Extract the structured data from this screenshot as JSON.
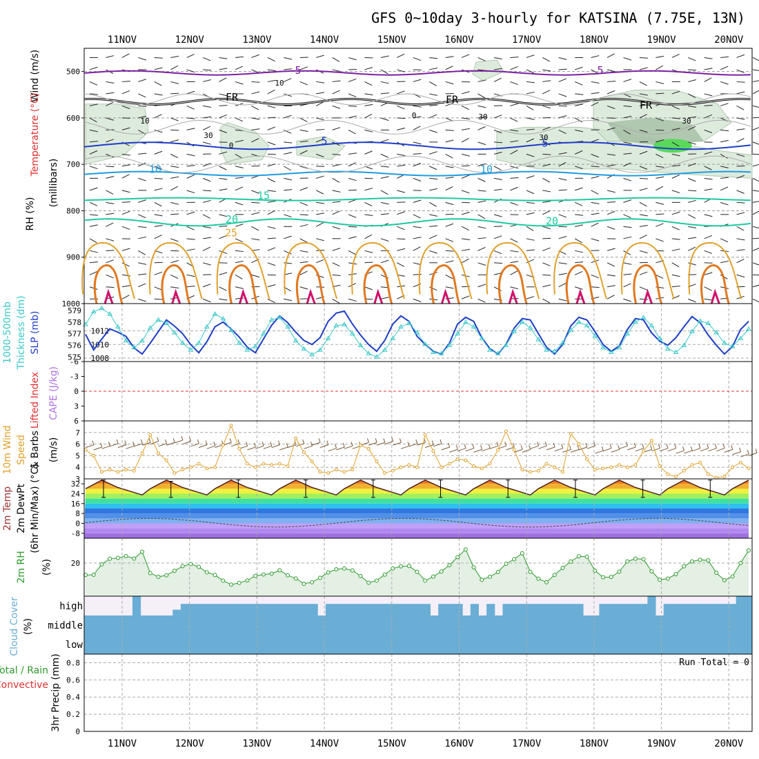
{
  "title": "GFS 0~10day 3-hourly for KATSINA (7.75E, 13N)",
  "dates": [
    "11NOV",
    "12NOV",
    "13NOV",
    "14NOV",
    "15NOV",
    "16NOV",
    "17NOV",
    "18NOV",
    "19NOV",
    "20NOV"
  ],
  "colors": {
    "rh": "#cfe3cf",
    "purple": "#7a1fa0",
    "blue": "#1e3cc8",
    "skyblue": "#1e9be0",
    "teal": "#1ec8a0",
    "orange": "#e0a028",
    "darkorange": "#e07820",
    "magenta": "#d0106a",
    "cyan": "#3cc8c8",
    "cloud": "#6aaed6",
    "green": "#2a9a2a",
    "red": "#e03030",
    "brown": "#7a5a3a"
  },
  "run_total": "Run Total = 0",
  "chart_data": [
    {
      "type": "contour",
      "panel": "upper-air",
      "ylabel_parts": [
        "Wind (m/s)",
        "Temperature (°C)",
        "RH (%)",
        "(millibars)"
      ],
      "yticks": [
        "500",
        "600",
        "700",
        "800",
        "900",
        "1000"
      ],
      "ylim": [
        450,
        1000
      ],
      "contour_labels": [
        {
          "text": "5",
          "color": "purple"
        },
        {
          "text": "5",
          "color": "purple"
        },
        {
          "text": "FR",
          "color": "black"
        },
        {
          "text": "FR",
          "color": "black"
        },
        {
          "text": "FR",
          "color": "black"
        },
        {
          "text": "5",
          "color": "blue"
        },
        {
          "text": "5",
          "color": "blue"
        },
        {
          "text": "10",
          "color": "skyblue"
        },
        {
          "text": "10",
          "color": "skyblue"
        },
        {
          "text": "15",
          "color": "teal"
        },
        {
          "text": "20",
          "color": "teal"
        },
        {
          "text": "20",
          "color": "teal"
        },
        {
          "text": "25",
          "color": "orange"
        },
        {
          "text": "10",
          "color": "gray"
        },
        {
          "text": "10",
          "color": "gray"
        },
        {
          "text": "0",
          "color": "gray"
        },
        {
          "text": "30",
          "color": "gray"
        },
        {
          "text": "0",
          "color": "gray"
        },
        {
          "text": "30",
          "color": "gray"
        },
        {
          "text": "30",
          "color": "gray"
        },
        {
          "text": "30",
          "color": "gray"
        }
      ],
      "levels_hpa": {
        "minus5": 503,
        "freezing": 565,
        "plus5": 660,
        "plus10": 720,
        "plus15": 775,
        "plus20": 825
      }
    },
    {
      "type": "line",
      "panel": "slp-thickness",
      "ylabel_parts": [
        "1000-500mb",
        "Thickness (dm)",
        "SLP (mb)"
      ],
      "left_ticks": [
        "579",
        "578",
        "577",
        "576",
        "575"
      ],
      "right_ticks": [
        "1012",
        "1010",
        "1008"
      ],
      "slp_ylim": [
        1007.5,
        1016
      ],
      "thickness_ylim": [
        574.6,
        579.6
      ],
      "series": [
        {
          "name": "SLP",
          "color": "blue",
          "values": [
            1011.5,
            1009.2,
            1010.8,
            1012.3,
            1011.8,
            1011.2,
            1009.5,
            1008.6,
            1010.2,
            1011.9,
            1013.6,
            1012.7,
            1011.6,
            1010,
            1008.8,
            1010.4,
            1012.6,
            1013.3,
            1012.3,
            1011.1,
            1009.6,
            1008.8,
            1010.8,
            1012.8,
            1014.2,
            1013.2,
            1011.8,
            1010.6,
            1010,
            1011,
            1013.4,
            1014.6,
            1014.9,
            1013,
            1011.4,
            1010,
            1009,
            1010.6,
            1013,
            1014.2,
            1013.4,
            1011.2,
            1010,
            1009,
            1008.6,
            1010.2,
            1013,
            1014,
            1013.4,
            1011,
            1009.4,
            1008.6,
            1010,
            1012.4,
            1013.8,
            1013.6,
            1011.6,
            1009.6,
            1008.6,
            1010,
            1012.7,
            1014,
            1013.6,
            1011.9,
            1010,
            1009,
            1009.8,
            1012.2,
            1013.8,
            1013.6,
            1011.7,
            1010.5,
            1009.9,
            1011,
            1012.6,
            1014.1,
            1013.2,
            1011.4,
            1009.9,
            1008.6,
            1009.7,
            1012.2,
            1013.4
          ]
        },
        {
          "name": "Thickness",
          "color": "cyan",
          "values": [
            577.8,
            578.9,
            579.2,
            578.7,
            577.6,
            576.4,
            575.8,
            576.4,
            577.5,
            578.2,
            577.9,
            577.1,
            576.2,
            575.6,
            576.2,
            577.6,
            578.7,
            578.3,
            577.3,
            576.2,
            575.6,
            575.9,
            577.0,
            578.2,
            578.4,
            577.6,
            576.4,
            575.7,
            575.2,
            575.6,
            576.6,
            577.7,
            577.8,
            577.0,
            576.0,
            575.3,
            575.0,
            575.6,
            576.6,
            577.6,
            577.9,
            577.1,
            576.1,
            575.4,
            575.3,
            576.0,
            577.0,
            578.0,
            577.6,
            576.6,
            575.6,
            575.3,
            576.0,
            577.2,
            578.0,
            577.5,
            576.5,
            575.6,
            575.5,
            576.2,
            577.3,
            578.0,
            577.7,
            576.8,
            575.8,
            575.4,
            575.8,
            577.0,
            578.0,
            578.4,
            577.7,
            576.6,
            575.7,
            575.4,
            576.0,
            577.2,
            578.1,
            577.9,
            577.1,
            576.2,
            575.9,
            576.6,
            577.4
          ]
        }
      ]
    },
    {
      "type": "line",
      "panel": "cape-li",
      "ylabel_parts": [
        "Lifted Index",
        "CAPE (J/kg)"
      ],
      "yticks": [
        "-6",
        "-3",
        "0",
        "3",
        "6"
      ],
      "ylim": [
        -6,
        6
      ],
      "lifted_index_zero": 0
    },
    {
      "type": "line",
      "panel": "wind10m",
      "ylabel_parts": [
        "10m Wind",
        "Speed",
        "& Barbs",
        "(m/s)"
      ],
      "yticks": [
        "7",
        "6",
        "5",
        "4",
        "3"
      ],
      "ylim": [
        3,
        8
      ],
      "series": [
        {
          "name": "Wind Speed",
          "color": "orange",
          "values": [
            5.5,
            5.0,
            3.6,
            3.8,
            3.6,
            3.8,
            3.7,
            5.2,
            6.8,
            5.2,
            4.6,
            3.5,
            3.8,
            4.0,
            4.3,
            3.9,
            4.0,
            5.9,
            7.6,
            5.6,
            4.3,
            4.0,
            4.3,
            4.2,
            4.3,
            4.1,
            6.5,
            5.3,
            4.5,
            3.6,
            3.5,
            3.8,
            3.6,
            3.8,
            5.9,
            5.6,
            4.5,
            3.5,
            3.7,
            4.0,
            4.2,
            4.0,
            6.8,
            5.4,
            4.0,
            4.3,
            4.7,
            4.6,
            4.1,
            3.9,
            4.3,
            5.5,
            7.1,
            5.5,
            3.8,
            3.6,
            3.7,
            4.3,
            4.0,
            3.6,
            6.9,
            6.0,
            4.7,
            3.8,
            3.9,
            4.0,
            4.2,
            4.0,
            4.2,
            5.4,
            6.3,
            4.1,
            3.4,
            3.2,
            3.7,
            4.2,
            4.4,
            3.4,
            3.1,
            3.2,
            4.0,
            4.4,
            3.9
          ]
        },
        {
          "name": "Barb Speed",
          "color": "brown",
          "values": [
            5.7,
            5.5,
            5.6,
            5.8,
            5.7,
            5.6,
            5.8,
            5.9,
            6.0,
            5.8,
            5.9,
            6.1,
            6.0,
            5.8,
            5.7,
            5.6,
            5.7,
            5.9,
            5.8,
            5.6,
            5.5,
            5.6,
            5.6,
            5.7,
            5.5,
            5.7,
            5.8,
            5.6,
            5.9,
            5.7,
            5.4,
            5.5,
            5.6,
            5.6,
            5.9,
            5.9,
            5.9,
            6.0,
            5.9,
            5.6,
            5.8,
            5.9,
            5.7,
            5.8,
            5.5,
            5.3,
            5.4,
            5.4,
            5.3,
            5.4,
            5.6,
            5.6,
            5.5,
            5.3,
            5.3,
            5.6,
            5.6,
            5.5,
            5.4,
            5.3,
            5.3,
            5.5,
            5.6,
            5.2,
            5.4,
            5.3,
            5.6,
            5.5,
            5.4,
            5.3,
            5.4,
            5.4,
            5.4,
            5.2,
            5.2,
            5.4,
            5.4,
            5.4,
            5.4,
            5.3,
            5.1,
            4.9,
            5.0
          ]
        }
      ]
    },
    {
      "type": "area",
      "panel": "temp2m",
      "ylabel_parts": [
        "2m Temp",
        "2m DewPt",
        "(6hr Min/Max) (°C)"
      ],
      "yticks": [
        "32",
        "24",
        "16",
        "8",
        "0",
        "-8"
      ],
      "ylim": [
        -12,
        36
      ],
      "max_temps": [
        35,
        34,
        35,
        35,
        35,
        35,
        35,
        35,
        35,
        35
      ],
      "min_temps": [
        21,
        21,
        21,
        21,
        21,
        21,
        21,
        21,
        21,
        21
      ],
      "dewpoint_range": [
        -3,
        4
      ]
    },
    {
      "type": "area",
      "panel": "rh2m",
      "ylabel_parts": [
        "2m RH",
        "(%)"
      ],
      "yticks": [
        "20"
      ],
      "ylim": [
        0,
        35
      ],
      "series": [
        {
          "name": "2m RH",
          "color": "green",
          "values": [
            12.8,
            12.9,
            19.2,
            22.6,
            23.1,
            24.2,
            22.7,
            26.8,
            13.9,
            11.7,
            12.6,
            15.3,
            18.1,
            19.4,
            17.7,
            14.4,
            12.8,
            9.4,
            7.0,
            8.0,
            9.5,
            12.3,
            13.1,
            13.6,
            15.6,
            12.6,
            10.7,
            7.5,
            8.4,
            11.1,
            14.3,
            16.2,
            16.7,
            15.5,
            12.2,
            8.1,
            9.4,
            13.0,
            16.7,
            18.0,
            18.2,
            14.7,
            9.4,
            11.8,
            14.9,
            18.7,
            23.6,
            28.2,
            17.4,
            9.9,
            11.7,
            14.6,
            19.6,
            22.3,
            25.9,
            14.7,
            10.5,
            8.4,
            12.8,
            17.1,
            20.9,
            24.1,
            23.8,
            15.4,
            11.4,
            11.6,
            14.8,
            21.0,
            22.6,
            22.3,
            15.0,
            9.9,
            10.6,
            13.3,
            18.0,
            21.0,
            22.0,
            21.6,
            14.1,
            9.6,
            11.9,
            20.0,
            27.6
          ]
        }
      ]
    },
    {
      "type": "bar",
      "panel": "cloud",
      "ylabel_parts": [
        "Cloud Cover",
        "(%)"
      ],
      "level_labels": [
        "high",
        "middle",
        "low"
      ],
      "middle_cover_pct": 100,
      "low_cover_pct": 100,
      "high_cover_pct": [
        0,
        0,
        0,
        0,
        0,
        0,
        100,
        0,
        0,
        0,
        0,
        30,
        60,
        60,
        60,
        60,
        60,
        60,
        60,
        60,
        60,
        60,
        60,
        60,
        60,
        60,
        60,
        60,
        60,
        0,
        60,
        60,
        60,
        60,
        60,
        60,
        60,
        60,
        60,
        60,
        60,
        60,
        60,
        0,
        60,
        60,
        60,
        0,
        60,
        0,
        60,
        0,
        60,
        60,
        60,
        60,
        60,
        60,
        60,
        60,
        60,
        60,
        0,
        0,
        60,
        60,
        60,
        60,
        60,
        60,
        100,
        0,
        60,
        60,
        60,
        60,
        60,
        60,
        60,
        60,
        60,
        100,
        100
      ]
    },
    {
      "type": "bar",
      "panel": "precip",
      "ylabel_parts": [
        "Total / Rain",
        "Convective",
        "3hr Precip (mm)"
      ],
      "yticks": [
        "0.8",
        "0.6",
        "0.4",
        "0.2",
        "0"
      ],
      "ylim": [
        0,
        0.9
      ],
      "values": []
    }
  ]
}
